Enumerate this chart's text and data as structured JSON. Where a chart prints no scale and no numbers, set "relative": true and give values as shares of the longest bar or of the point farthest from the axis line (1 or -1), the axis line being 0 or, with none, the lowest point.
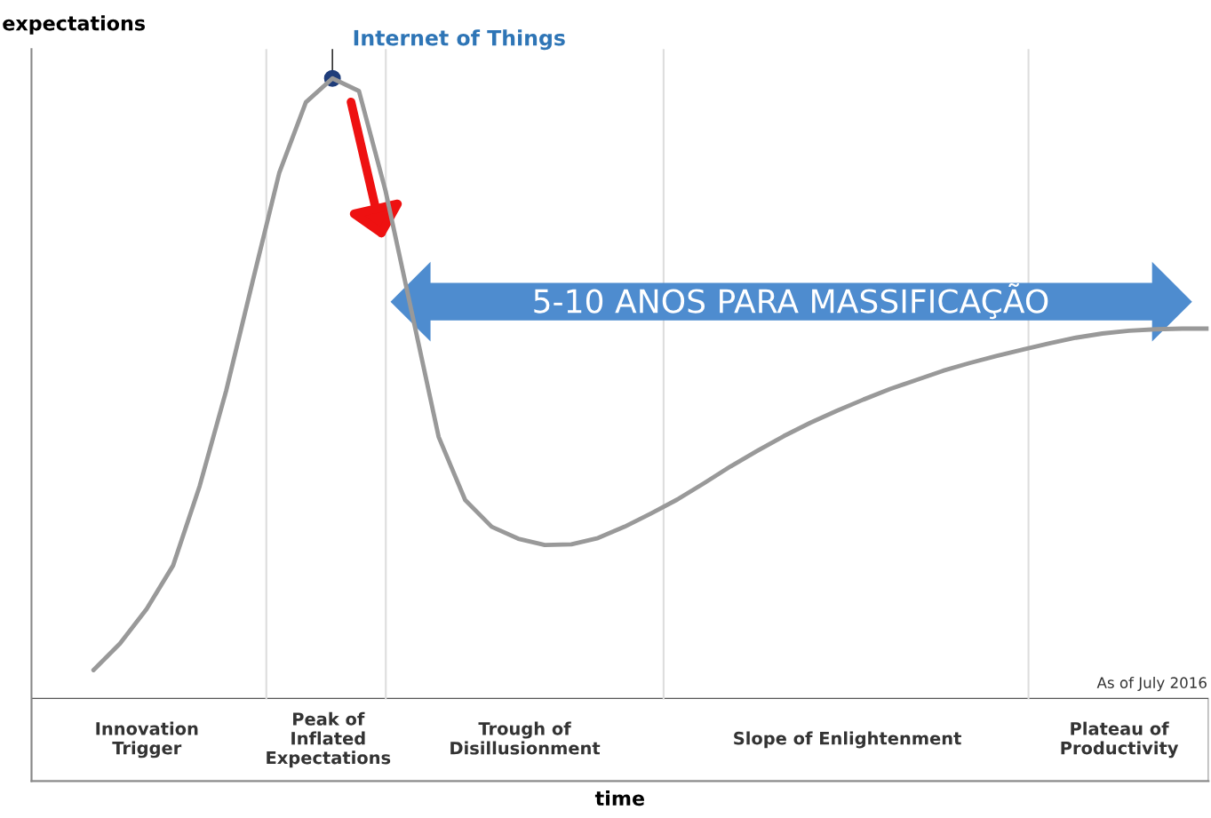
{
  "chart_data": {
    "type": "line",
    "relative": true,
    "xlabel": "time",
    "ylabel": "expectations",
    "categories": [
      null,
      null,
      null,
      null,
      null,
      null,
      null,
      null,
      null,
      null,
      null,
      null,
      null,
      null,
      null,
      null,
      null,
      null,
      null,
      null,
      null,
      null,
      null,
      null,
      null,
      null,
      null,
      null,
      null,
      null,
      null,
      null,
      null,
      null,
      null,
      null,
      null,
      null,
      null,
      null,
      null,
      null,
      null
    ],
    "series": [
      {
        "color": "#999999",
        "values": [
          0.158,
          0.196,
          0.245,
          0.307,
          0.42,
          0.556,
          0.712,
          0.866,
          0.966,
          1.0,
          0.982,
          0.84,
          0.665,
          0.49,
          0.4,
          0.362,
          0.345,
          0.336,
          0.337,
          0.346,
          0.362,
          0.381,
          0.401,
          0.424,
          0.448,
          0.47,
          0.491,
          0.51,
          0.527,
          0.543,
          0.558,
          0.571,
          0.584,
          0.595,
          0.605,
          0.614,
          0.623,
          0.631,
          0.637,
          0.641,
          0.643,
          0.644,
          0.644
        ]
      }
    ],
    "annotations": [
      "Internet of Things",
      "5-10 ANOS PARA MASSIFICAÇÃO",
      "As of July 2016",
      "Innovation\nTrigger",
      "Peak of\nInflated\nExpectations",
      "Trough of\nDisillusionment",
      "Slope of Enlightenment",
      "Plateau of\nProductivity"
    ]
  }
}
